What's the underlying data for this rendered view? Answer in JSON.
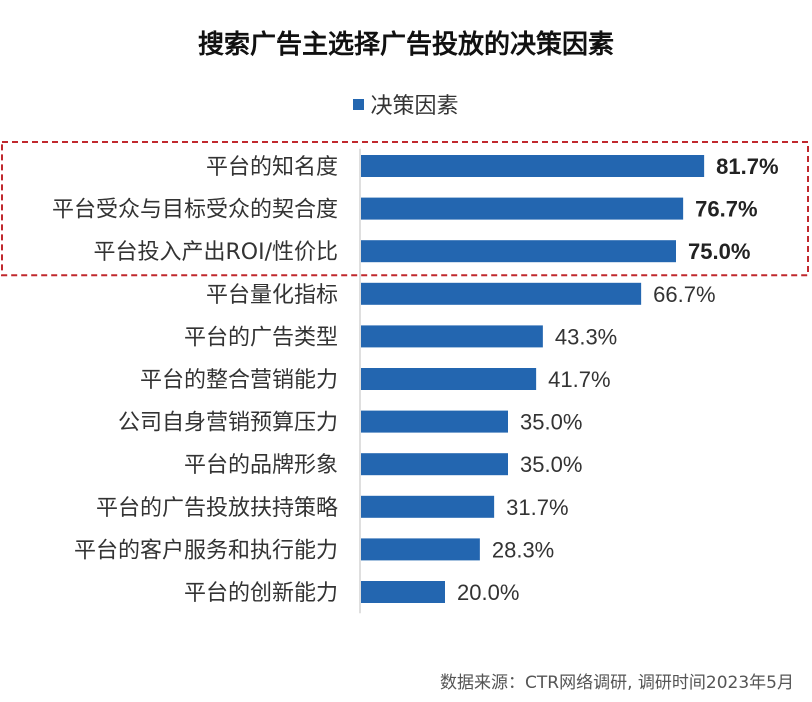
{
  "chart_data": {
    "type": "bar",
    "orientation": "horizontal",
    "title": "搜索广告主选择广告投放的决策因素",
    "series": [
      {
        "name": "决策因素",
        "color": "#2366b0",
        "values": [
          81.7,
          76.7,
          75.0,
          66.7,
          43.3,
          41.7,
          35.0,
          35.0,
          31.7,
          28.3,
          20.0
        ],
        "value_labels": [
          "81.7%",
          "76.7%",
          "75.0%",
          "66.7%",
          "43.3%",
          "41.7%",
          "35.0%",
          "35.0%",
          "31.7%",
          "28.3%",
          "20.0%"
        ]
      }
    ],
    "categories": [
      "平台的知名度",
      "平台受众与目标受众的契合度",
      "平台投入产出ROI/性价比",
      "平台量化指标",
      "平台的广告类型",
      "平台的整合营销能力",
      "公司自身营销预算压力",
      "平台的品牌形象",
      "平台的广告投放扶持策略",
      "平台的客户服务和执行能力",
      "平台的创新能力"
    ],
    "xlim": [
      0,
      100
    ],
    "legend_position": "top-center",
    "highlight": {
      "categories_index": [
        0,
        1,
        2
      ],
      "style": "dashed-box",
      "color": "#c0282d"
    },
    "grid": false,
    "source": "数据来源：CTR网络调研, 调研时间2023年5月"
  }
}
